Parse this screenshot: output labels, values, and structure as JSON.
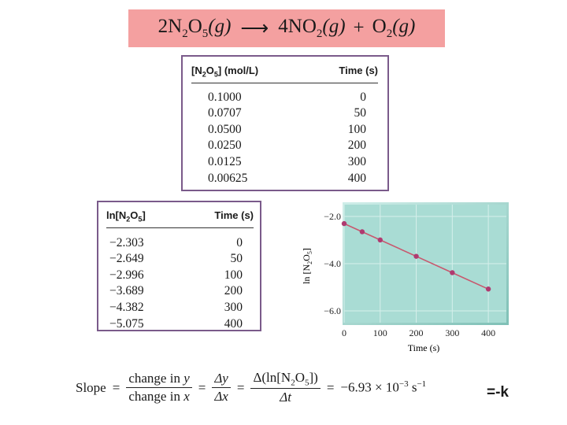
{
  "reaction": {
    "r_coef": "2",
    "r_species": "N",
    "r_sub1": "2",
    "r_o": "O",
    "r_sub2": "5",
    "r_phase": "(g)",
    "arrow": "⟶",
    "p1_coef": "4",
    "p1_species": "NO",
    "p1_sub": "2",
    "p1_phase": "(g)",
    "plus": "+",
    "p2_species": "O",
    "p2_sub": "2",
    "p2_phase": "(g)"
  },
  "table_conc": {
    "header_conc_pre": "[N",
    "header_conc_sub1": "2",
    "header_conc_mid": "O",
    "header_conc_sub2": "5",
    "header_conc_post": "] (mol/L)",
    "header_time": "Time (s)",
    "rows": [
      {
        "conc": "0.1000",
        "time": "0"
      },
      {
        "conc": "0.0707",
        "time": "50"
      },
      {
        "conc": "0.0500",
        "time": "100"
      },
      {
        "conc": "0.0250",
        "time": "200"
      },
      {
        "conc": "0.0125",
        "time": "300"
      },
      {
        "conc": "0.00625",
        "time": "400"
      }
    ]
  },
  "table_ln": {
    "header_ln_pre": "ln[N",
    "header_ln_sub1": "2",
    "header_ln_mid": "O",
    "header_ln_sub2": "5",
    "header_ln_post": "]",
    "header_time": "Time (s)",
    "rows": [
      {
        "ln": "−2.303",
        "time": "0"
      },
      {
        "ln": "−2.649",
        "time": "50"
      },
      {
        "ln": "−2.996",
        "time": "100"
      },
      {
        "ln": "−3.689",
        "time": "200"
      },
      {
        "ln": "−4.382",
        "time": "300"
      },
      {
        "ln": "−5.075",
        "time": "400"
      }
    ]
  },
  "chart_data": {
    "type": "line",
    "xlabel": "Time (s)",
    "ylabel": "ln [N2O5]",
    "x": [
      0,
      50,
      100,
      200,
      300,
      400
    ],
    "y": [
      -2.303,
      -2.649,
      -2.996,
      -3.689,
      -4.382,
      -5.075
    ],
    "xticks": [
      0,
      100,
      200,
      300,
      400
    ],
    "xtick_labels": [
      "0",
      "100",
      "200",
      "300",
      "400"
    ],
    "yticks": [
      -2.0,
      -4.0,
      -6.0
    ],
    "ytick_labels": [
      "−2.0",
      "−4.0",
      "−6.0"
    ],
    "xlim": [
      0,
      450
    ],
    "ylim": [
      -6.5,
      -1.5
    ],
    "grid": true,
    "legend": "none",
    "colors": {
      "background": "#a9dcd4",
      "grid": "#d6efeb",
      "line": "#c8586e",
      "marker": "#b03a70"
    }
  },
  "formula": {
    "slope_label": "Slope",
    "eq": "=",
    "num1": "change in ",
    "num1_var": "y",
    "den1": "change in ",
    "den1_var": "x",
    "num2": "Δy",
    "den2": "Δx",
    "num3_pre": "Δ(ln[N",
    "num3_sub1": "2",
    "num3_mid": "O",
    "num3_sub2": "5",
    "num3_post": "])",
    "den3": "Δt",
    "value": "−6.93 × 10",
    "exp": "−3",
    "unit": "s",
    "unit_exp": "−1",
    "note": "=-k"
  }
}
